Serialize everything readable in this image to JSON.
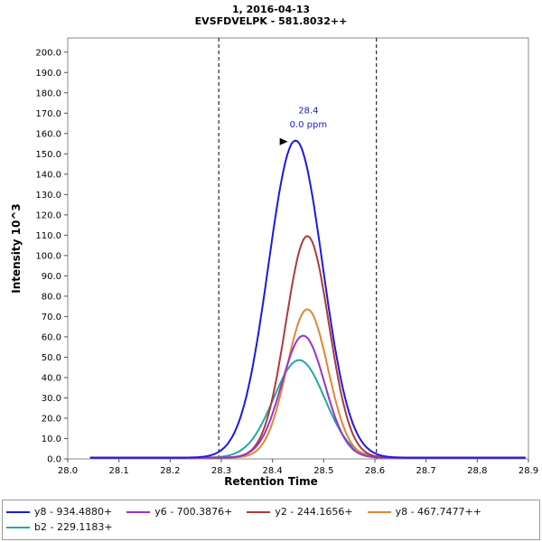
{
  "chart_data": {
    "type": "line",
    "title_line1": "1, 2016-04-13",
    "title_line2": "EVSFDVELPK - 581.8032++",
    "xlabel": "Retention Time",
    "ylabel": "Intensity 10^3",
    "xlim": [
      28.0,
      28.9
    ],
    "ylim": [
      0,
      207
    ],
    "x_ticks": [
      28.0,
      28.1,
      28.2,
      28.3,
      28.4,
      28.5,
      28.6,
      28.7,
      28.8,
      28.9
    ],
    "y_ticks": [
      0.0,
      10.0,
      20.0,
      30.0,
      40.0,
      50.0,
      60.0,
      70.0,
      80.0,
      90.0,
      100.0,
      110.0,
      120.0,
      130.0,
      140.0,
      150.0,
      160.0,
      170.0,
      180.0,
      190.0,
      200.0
    ],
    "peak_boundaries": [
      28.295,
      28.603
    ],
    "annotation": {
      "rt_label": "28.4",
      "ppm_label": "0.0 ppm",
      "x": 28.47,
      "y_rt": 170,
      "y_ppm": 163,
      "color": "#2020cc",
      "arrow": {
        "x": 28.43,
        "y": 156,
        "color": "#000000"
      }
    },
    "data_x_start": 28.045,
    "data_x_end": 28.895,
    "series": [
      {
        "name": "y8 - 934.4880+",
        "color": "#1b1bdd",
        "apex_rt": 28.445,
        "sigma": 0.053,
        "height": 156,
        "baseline": 0.6
      },
      {
        "name": "y6 - 700.3876+",
        "color": "#9933cc",
        "apex_rt": 28.46,
        "sigma": 0.042,
        "height": 60,
        "baseline": 0.6
      },
      {
        "name": "y2 - 244.1656+",
        "color": "#b03a3a",
        "apex_rt": 28.468,
        "sigma": 0.042,
        "height": 109,
        "baseline": 0.6
      },
      {
        "name": "y8 - 467.7477++",
        "color": "#dd8833",
        "apex_rt": 28.468,
        "sigma": 0.04,
        "height": 73,
        "baseline": 0.6
      },
      {
        "name": "b2 - 229.1183+",
        "color": "#22aaa0",
        "apex_rt": 28.452,
        "sigma": 0.05,
        "height": 48,
        "baseline": 0.6
      }
    ],
    "grid": false,
    "legend_position": "bottom"
  }
}
